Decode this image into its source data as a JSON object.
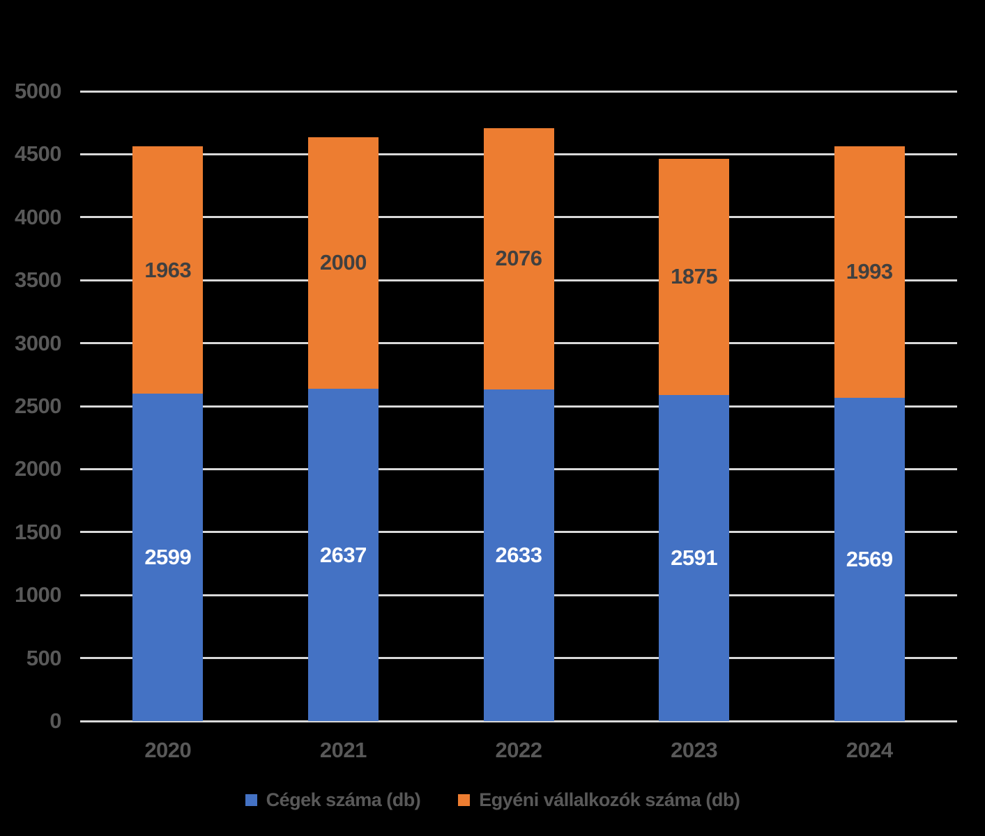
{
  "background_color": "#000000",
  "chart_data": {
    "type": "bar",
    "stacked": true,
    "title": "",
    "xlabel": "",
    "ylabel": "",
    "categories": [
      "2020",
      "2021",
      "2022",
      "2023",
      "2024"
    ],
    "series": [
      {
        "name": "Cégek száma (db)",
        "color": "#4472C4",
        "label_color": "#FFFFFF",
        "values": [
          2599,
          2637,
          2633,
          2591,
          2569
        ]
      },
      {
        "name": "Egyéni vállalkozók száma (db)",
        "color": "#ED7D31",
        "label_color": "#404040",
        "values": [
          1963,
          2000,
          2076,
          1875,
          1993
        ]
      }
    ],
    "ylim": [
      0,
      5000
    ],
    "ytick_step": 500,
    "yticks": [
      0,
      500,
      1000,
      1500,
      2000,
      2500,
      3000,
      3500,
      4000,
      4500,
      5000
    ],
    "grid": true,
    "gridline_color": "#D9D9D9",
    "axis_label_color": "#595959",
    "legend_position": "bottom",
    "data_labels": "inside-center"
  }
}
